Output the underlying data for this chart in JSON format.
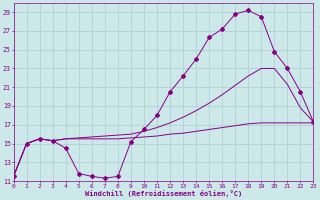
{
  "xlabel": "Windchill (Refroidissement éolien,°C)",
  "bg_color": "#cce8e8",
  "grid_color": "#aacece",
  "line_color": "#880088",
  "xlim": [
    0,
    23
  ],
  "ylim": [
    11,
    30
  ],
  "xticks": [
    0,
    1,
    2,
    3,
    4,
    5,
    6,
    7,
    8,
    9,
    10,
    11,
    12,
    13,
    14,
    15,
    16,
    17,
    18,
    19,
    20,
    21,
    22,
    23
  ],
  "yticks": [
    11,
    13,
    15,
    17,
    19,
    21,
    23,
    25,
    27,
    29
  ],
  "curve_wavy_x": [
    0,
    1,
    2,
    3,
    4,
    5,
    6,
    7,
    8,
    9,
    10,
    11,
    12,
    13,
    14,
    15,
    16,
    17,
    18,
    19,
    20,
    21,
    22,
    23
  ],
  "curve_wavy_y": [
    11.5,
    15.0,
    15.5,
    15.3,
    14.5,
    11.8,
    11.5,
    11.3,
    11.5,
    15.2,
    16.5,
    18.0,
    20.5,
    22.2,
    24.0,
    26.3,
    27.2,
    28.8,
    29.2,
    28.5,
    24.8,
    23.0,
    20.5,
    17.3
  ],
  "curve_mid_x": [
    0,
    1,
    2,
    3,
    4,
    5,
    6,
    7,
    8,
    9,
    10,
    11,
    12,
    13,
    14,
    15,
    16,
    17,
    18,
    19,
    20,
    21,
    22,
    23
  ],
  "curve_mid_y": [
    11.5,
    15.0,
    15.5,
    15.3,
    15.5,
    15.6,
    15.7,
    15.8,
    15.9,
    16.0,
    16.3,
    16.7,
    17.2,
    17.8,
    18.5,
    19.3,
    20.2,
    21.2,
    22.2,
    23.0,
    23.0,
    21.3,
    18.8,
    17.3
  ],
  "curve_flat_x": [
    0,
    1,
    2,
    3,
    4,
    5,
    6,
    7,
    8,
    9,
    10,
    11,
    12,
    13,
    14,
    15,
    16,
    17,
    18,
    19,
    20,
    21,
    22,
    23
  ],
  "curve_flat_y": [
    11.5,
    15.0,
    15.5,
    15.3,
    15.5,
    15.5,
    15.5,
    15.5,
    15.5,
    15.6,
    15.7,
    15.8,
    16.0,
    16.1,
    16.3,
    16.5,
    16.7,
    16.9,
    17.1,
    17.2,
    17.2,
    17.2,
    17.2,
    17.2
  ]
}
